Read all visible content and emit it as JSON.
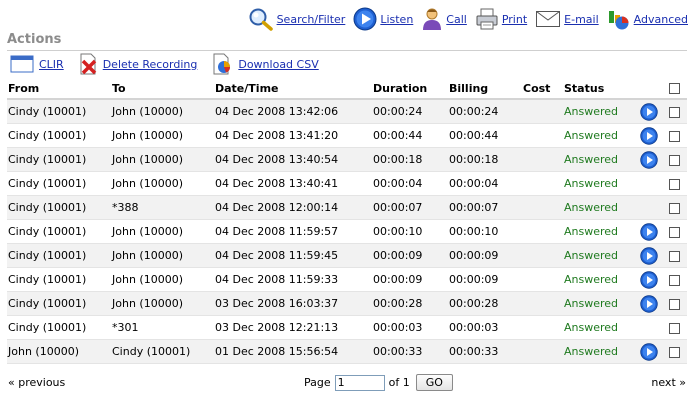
{
  "toolbar": {
    "search": "Search/Filter",
    "listen": "Listen",
    "call": "Call",
    "print": "Print",
    "email": "E-mail",
    "advanced": "Advanced"
  },
  "section_title": "Actions",
  "actions": {
    "clir": "CLIR",
    "delete": "Delete Recording",
    "download": "Download CSV"
  },
  "columns": {
    "from": "From",
    "to": "To",
    "datetime": "Date/Time",
    "duration": "Duration",
    "billing": "Billing",
    "cost": "Cost",
    "status": "Status"
  },
  "rows": [
    {
      "from": "Cindy (10001)",
      "to": "John (10000)",
      "datetime": "04 Dec 2008 13:42:06",
      "duration": "00:00:24",
      "billing": "00:00:24",
      "cost": "",
      "status": "Answered"
    },
    {
      "from": "Cindy (10001)",
      "to": "John (10000)",
      "datetime": "04 Dec 2008 13:41:20",
      "duration": "00:00:44",
      "billing": "00:00:44",
      "cost": "",
      "status": "Answered"
    },
    {
      "from": "Cindy (10001)",
      "to": "John (10000)",
      "datetime": "04 Dec 2008 13:40:54",
      "duration": "00:00:18",
      "billing": "00:00:18",
      "cost": "",
      "status": "Answered"
    },
    {
      "from": "Cindy (10001)",
      "to": "John (10000)",
      "datetime": "04 Dec 2008 13:40:41",
      "duration": "00:00:04",
      "billing": "00:00:04",
      "cost": "",
      "status": "Answered"
    },
    {
      "from": "Cindy (10001)",
      "to": "*388",
      "datetime": "04 Dec 2008 12:00:14",
      "duration": "00:00:07",
      "billing": "00:00:07",
      "cost": "",
      "status": "Answered"
    },
    {
      "from": "Cindy (10001)",
      "to": "John (10000)",
      "datetime": "04 Dec 2008 11:59:57",
      "duration": "00:00:10",
      "billing": "00:00:10",
      "cost": "",
      "status": "Answered"
    },
    {
      "from": "Cindy (10001)",
      "to": "John (10000)",
      "datetime": "04 Dec 2008 11:59:45",
      "duration": "00:00:09",
      "billing": "00:00:09",
      "cost": "",
      "status": "Answered"
    },
    {
      "from": "Cindy (10001)",
      "to": "John (10000)",
      "datetime": "04 Dec 2008 11:59:33",
      "duration": "00:00:09",
      "billing": "00:00:09",
      "cost": "",
      "status": "Answered"
    },
    {
      "from": "Cindy (10001)",
      "to": "John (10000)",
      "datetime": "03 Dec 2008 16:03:37",
      "duration": "00:00:28",
      "billing": "00:00:28",
      "cost": "",
      "status": "Answered"
    },
    {
      "from": "Cindy (10001)",
      "to": "*301",
      "datetime": "03 Dec 2008 12:21:13",
      "duration": "00:00:03",
      "billing": "00:00:03",
      "cost": "",
      "status": "Answered"
    },
    {
      "from": "John (10000)",
      "to": "Cindy (10001)",
      "datetime": "01 Dec 2008 15:56:54",
      "duration": "00:00:33",
      "billing": "00:00:33",
      "cost": "",
      "status": "Answered"
    }
  ],
  "recordings": [
    true,
    true,
    true,
    false,
    false,
    true,
    true,
    true,
    true,
    false,
    true
  ],
  "pager": {
    "prev": "« previous",
    "page_label": "Page",
    "page_value": "1",
    "of_label": "of 1",
    "go": "GO",
    "next": "next »"
  },
  "colors": {
    "link": "#1a2fb0",
    "answered": "#1f7a1f",
    "row_alt": "#f2f2f2",
    "play_button": "#2a6fd6"
  },
  "icons": [
    "magnifier-icon",
    "listen-icon",
    "call-person-icon",
    "printer-icon",
    "envelope-icon",
    "advanced-chart-icon",
    "window-icon",
    "delete-x-icon",
    "csv-chart-icon",
    "play-icon",
    "checkbox"
  ]
}
